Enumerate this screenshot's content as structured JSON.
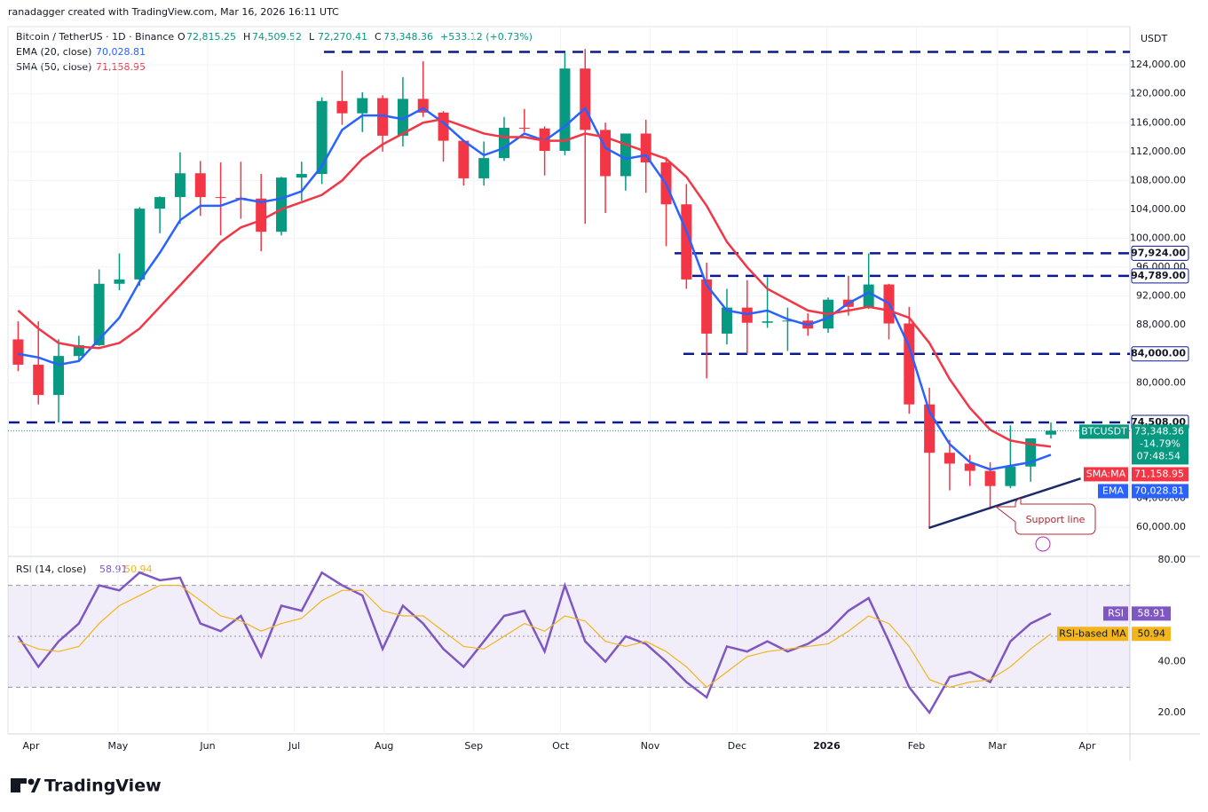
{
  "chart_data": {
    "type": "candlestick",
    "author_line": "ranadagger created with TradingView.com, Mar 16, 2026 16:11 UTC",
    "symbol": "Bitcoin / TetherUS · 1D · Binance",
    "currency": "USDT",
    "quote": {
      "fields": [
        {
          "key": "O",
          "value": "72,815.25"
        },
        {
          "key": "H",
          "value": "74,509.52"
        },
        {
          "key": "L",
          "value": "72,270.41"
        },
        {
          "key": "C",
          "value": "73,348.36"
        }
      ],
      "change": "+533.12 (+0.73%)",
      "ticker": "BTCUSDT",
      "change_pct": "-14.79%",
      "countdown": "07:48:54"
    },
    "categories": [
      null,
      null,
      null,
      null,
      null,
      null,
      null,
      null,
      null,
      null,
      null,
      null,
      null,
      null,
      null,
      null,
      null,
      null,
      null,
      null,
      null,
      null,
      null,
      null,
      null,
      null,
      null,
      null,
      null,
      null,
      null,
      null,
      null,
      null,
      null,
      null,
      null,
      null,
      null,
      null,
      null,
      null,
      null,
      null,
      null,
      null,
      null,
      null,
      null,
      null,
      null,
      null
    ],
    "xlim": [
      0,
      55.4
    ],
    "xticks": [
      {
        "value": 1.14,
        "label": "Apr"
      },
      {
        "value": 5.43,
        "label": "May"
      },
      {
        "value": 9.86,
        "label": "Jun"
      },
      {
        "value": 14.14,
        "label": "Jul"
      },
      {
        "value": 18.57,
        "label": "Aug"
      },
      {
        "value": 23,
        "label": "Sep"
      },
      {
        "value": 27.29,
        "label": "Oct"
      },
      {
        "value": 31.71,
        "label": "Nov"
      },
      {
        "value": 36,
        "label": "Dec"
      },
      {
        "value": 40.43,
        "label": "2026"
      },
      {
        "value": 44.86,
        "label": "Feb"
      },
      {
        "value": 48.86,
        "label": "Mar"
      },
      {
        "value": 53.29,
        "label": "Apr"
      }
    ],
    "ylim": [
      56200,
      129300
    ],
    "yticks": [
      {
        "value": 124000,
        "label": "124,000.00"
      },
      {
        "value": 120000,
        "label": "120,000.00"
      },
      {
        "value": 116000,
        "label": "116,000.00"
      },
      {
        "value": 112000,
        "label": "112,000.00"
      },
      {
        "value": 108000,
        "label": "108,000.00"
      },
      {
        "value": 104000,
        "label": "104,000.00"
      },
      {
        "value": 100000,
        "label": "100,000.00"
      },
      {
        "value": 96000,
        "label": "96,000.00"
      },
      {
        "value": 92000,
        "label": "92,000.00"
      },
      {
        "value": 88000,
        "label": "88,000.00"
      },
      {
        "value": 80000,
        "label": "80,000.00"
      },
      {
        "value": 64000,
        "label": "64,000.00"
      },
      {
        "value": 60000,
        "label": "60,000.00"
      }
    ],
    "grid": true,
    "up_color": "#089981",
    "down_color": "#f23645",
    "ohlc": {
      "open": [
        86000,
        82500,
        78300,
        83700,
        85200,
        93700,
        94300,
        104100,
        105700,
        109000,
        105700,
        105600,
        105500,
        100900,
        108400,
        108900,
        119000,
        117300,
        119400,
        114200,
        119300,
        117400,
        113500,
        108300,
        111100,
        115300,
        115200,
        112100,
        123500,
        115000,
        108600,
        114500,
        110500,
        104700,
        94300,
        86800,
        90400,
        88300,
        88500,
        88600,
        87500,
        91500,
        90500,
        93600,
        88200,
        77000,
        70300,
        68800,
        67800,
        65700,
        68400,
        72815.25
      ],
      "high": [
        88500,
        88500,
        86000,
        86500,
        95700,
        97900,
        104300,
        105800,
        111900,
        110700,
        110500,
        110600,
        108900,
        108500,
        110600,
        119500,
        123200,
        120200,
        119800,
        122300,
        124500,
        117600,
        113600,
        113400,
        116800,
        117900,
        115500,
        125700,
        126200,
        116000,
        114000,
        116400,
        111200,
        107500,
        96600,
        93000,
        94200,
        94600,
        90400,
        89600,
        91800,
        94800,
        97900,
        93700,
        90500,
        79300,
        72100,
        70000,
        69000,
        74100,
        72300,
        74509.52
      ],
      "low": [
        81600,
        77000,
        74500,
        83000,
        85100,
        92800,
        93400,
        100700,
        102000,
        103100,
        100400,
        102700,
        98200,
        100400,
        105200,
        107500,
        115700,
        114700,
        112000,
        112700,
        116800,
        110600,
        107300,
        107300,
        110700,
        114700,
        108700,
        111500,
        102000,
        103500,
        106600,
        106300,
        98900,
        93000,
        80600,
        85300,
        84000,
        87600,
        84400,
        86500,
        86900,
        89300,
        90200,
        86000,
        75700,
        60000,
        65100,
        65700,
        62500,
        65400,
        66300,
        72270.41
      ],
      "close": [
        82500,
        78300,
        83700,
        85200,
        93700,
        94300,
        104100,
        105700,
        109000,
        105700,
        105600,
        105500,
        100900,
        108400,
        108900,
        119000,
        117300,
        119400,
        114200,
        119300,
        117400,
        113500,
        108300,
        111100,
        115300,
        115200,
        112100,
        123500,
        115000,
        108600,
        114500,
        110500,
        104700,
        94300,
        86800,
        90400,
        88300,
        88500,
        88600,
        87500,
        91500,
        90500,
        93600,
        88200,
        77000,
        70300,
        68800,
        67800,
        65700,
        68400,
        72300,
        73348.36
      ]
    },
    "series": [
      {
        "name": "EMA (20, close)",
        "short": "EMA",
        "last_label": "70,028.81",
        "color": "#2962ff",
        "values": [
          84000,
          83500,
          82500,
          83000,
          86000,
          89000,
          94000,
          98000,
          102500,
          104500,
          104500,
          105500,
          105000,
          105500,
          106500,
          110000,
          115000,
          117000,
          117000,
          116500,
          118000,
          116000,
          113500,
          111500,
          112500,
          114500,
          113500,
          115500,
          118000,
          112500,
          111000,
          111500,
          107500,
          101000,
          93500,
          90000,
          89500,
          90000,
          88800,
          88000,
          89000,
          91000,
          92500,
          91000,
          85000,
          76000,
          71500,
          69000,
          68000,
          68500,
          69000,
          70028.81
        ]
      },
      {
        "name": "SMA (50, close)",
        "short": "SMA:MA",
        "last_label": "71,158.95",
        "color": "#f23645",
        "values": [
          90000,
          87500,
          85500,
          85000,
          84800,
          85500,
          87500,
          90500,
          93500,
          96500,
          99500,
          101500,
          102500,
          104000,
          105000,
          106000,
          108000,
          111000,
          113000,
          114500,
          116000,
          116500,
          115500,
          114500,
          114000,
          114000,
          113500,
          113500,
          114500,
          114000,
          113000,
          112000,
          111000,
          108500,
          104500,
          99500,
          96000,
          93000,
          91500,
          90000,
          89500,
          90000,
          90500,
          90000,
          89000,
          85500,
          80500,
          76500,
          73500,
          72000,
          71500,
          71158.95
        ]
      }
    ],
    "levels": [
      125800,
      {
        "value": 97924,
        "label": "97,924.00"
      },
      {
        "value": 94789,
        "label": "94,789.00"
      },
      {
        "value": 84000,
        "label": "84,000.00"
      },
      {
        "value": 74508,
        "label": "74,508.00"
      }
    ],
    "support_line": {
      "label": "Support line",
      "start": [
        45.47,
        59900
      ],
      "end": [
        52.97,
        66750
      ]
    },
    "rsi": {
      "title": "RSI (14, close)",
      "ylim": [
        11.3,
        81
      ],
      "yticks": [
        {
          "value": 80,
          "label": "80.00"
        },
        {
          "value": 40,
          "label": "40.00"
        },
        {
          "value": 20,
          "label": "20.00"
        }
      ],
      "bands": [
        70,
        50,
        30
      ],
      "series": [
        {
          "name": "RSI",
          "last_label": "58.91",
          "color": "#7e57c2",
          "values": [
            50,
            38,
            48,
            55,
            70,
            68,
            75,
            72,
            73,
            55,
            52,
            58,
            42,
            62,
            60,
            75,
            70,
            66,
            45,
            62,
            55,
            45,
            38,
            48,
            58,
            60,
            44,
            70,
            48,
            40,
            50,
            47,
            40,
            32,
            26,
            46,
            44,
            48,
            44,
            47,
            52,
            60,
            65,
            48,
            30,
            20,
            34,
            36,
            32,
            48,
            55,
            58.91
          ]
        },
        {
          "name": "RSI-based MA",
          "last_label": "50.94",
          "color": "#f2b51d",
          "values": [
            48,
            45,
            44,
            46,
            55,
            62,
            66,
            70,
            70,
            64,
            58,
            56,
            52,
            55,
            57,
            64,
            68,
            68,
            60,
            58,
            58,
            52,
            46,
            45,
            50,
            55,
            52,
            58,
            56,
            48,
            46,
            48,
            44,
            38,
            30,
            36,
            42,
            44,
            45,
            46,
            47,
            52,
            58,
            55,
            46,
            33,
            30,
            32,
            33,
            38,
            45,
            50.94
          ]
        }
      ]
    },
    "brand": "TradingView"
  }
}
